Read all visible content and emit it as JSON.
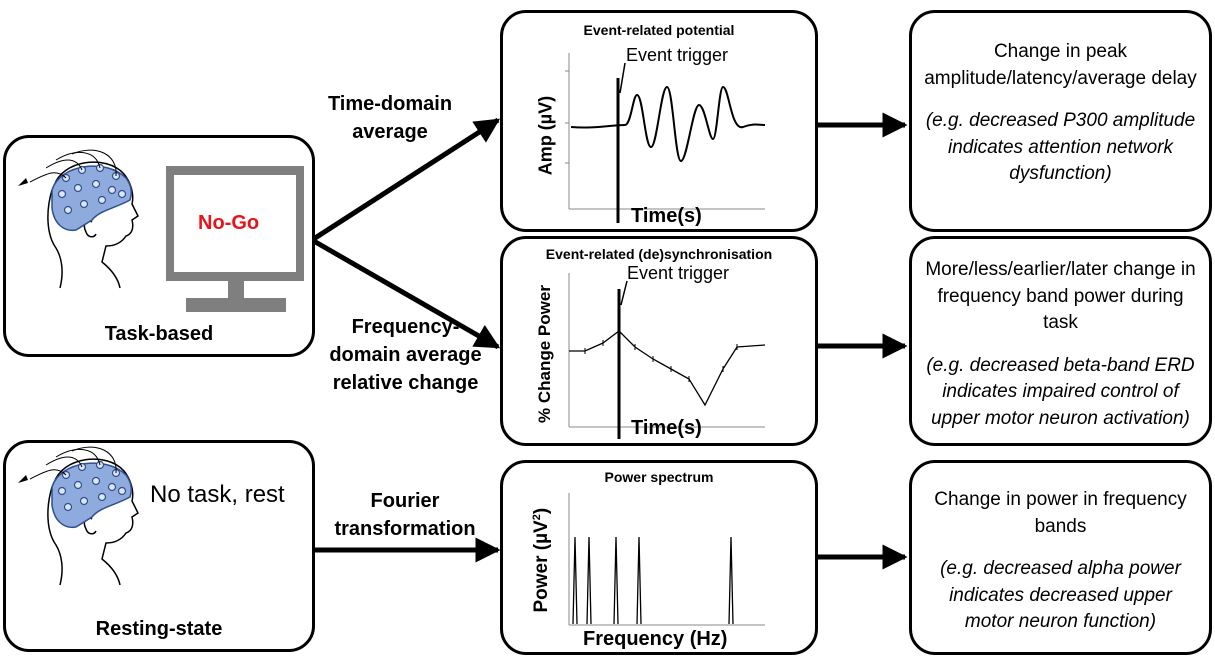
{
  "left": {
    "task_box_label": "Task-based",
    "screen_text": "No-Go",
    "rest_box_label": "Resting-state",
    "rest_text": "No task, rest",
    "screen_text_color": "#e8141a",
    "cap_color": "#8faadc"
  },
  "methods": {
    "time_domain": [
      "Time-domain",
      "average"
    ],
    "frequency_domain": [
      "Frequency-",
      "domain average",
      "relative change"
    ],
    "fourier": [
      "Fourier",
      "transformation"
    ]
  },
  "plots": {
    "erp": {
      "title": "Event-related potential",
      "ylabel": "Amp (µV)",
      "xlabel": "Time(s)",
      "trigger_label": "Event trigger"
    },
    "erd": {
      "title": "Event-related (de)synchronisation",
      "ylabel": "% Change Power",
      "xlabel": "Time(s)",
      "trigger_label": "Event trigger"
    },
    "psd": {
      "title": "Power spectrum",
      "ylabel_main": "Power (µV",
      "ylabel_sup": "2",
      "ylabel_end": ")",
      "xlabel": "Frequency (Hz)"
    }
  },
  "results": {
    "erp": {
      "main": "Change in peak amplitude/latency/average delay",
      "example": "(e.g. decreased P300 amplitude indicates attention network dysfunction)"
    },
    "erd": {
      "main": "More/less/earlier/later change in frequency band power during task",
      "example": "(e.g. decreased beta-band ERD indicates impaired control of upper motor neuron activation)"
    },
    "psd": {
      "main": "Change in power in frequency bands",
      "example": "(e.g. decreased alpha power indicates decreased upper motor neuron function)"
    }
  }
}
